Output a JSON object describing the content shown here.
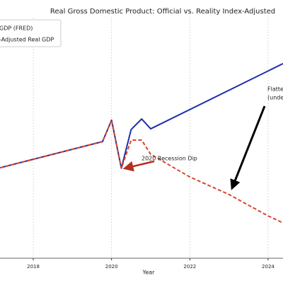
{
  "chart_data": {
    "type": "line",
    "title": "Real Gross Domestic Product: Official vs. Reality Index-Adjusted",
    "xlabel": "Year",
    "xlim": [
      2017.15,
      2024.38
    ],
    "xticks": [
      2018,
      2020,
      2022,
      2024
    ],
    "ylim": [
      0,
      100
    ],
    "grid": true,
    "legend": "upper left",
    "series": [
      {
        "name": "GDP (FRED)",
        "color": "#1f2fa8",
        "style": "solid",
        "x": [
          2017.15,
          2019.77,
          2020.0,
          2020.25,
          2020.5,
          2020.77,
          2021.0,
          2024.38
        ],
        "values": [
          37.6,
          48.5,
          57.4,
          37.4,
          53.5,
          57.9,
          53.8,
          80.9
        ]
      },
      {
        "name": "-Adjusted Real GDP",
        "color": "#d9442a",
        "style": "dashed",
        "x": [
          2017.15,
          2019.77,
          2020.0,
          2020.25,
          2020.5,
          2020.77,
          2021.0,
          2022,
          2023,
          2024,
          2024.38
        ],
        "values": [
          37.6,
          48.5,
          57.4,
          37.4,
          49.1,
          49.1,
          43.2,
          33.8,
          26.5,
          17.6,
          14.7
        ]
      }
    ],
    "annotations": [
      "2020 Recession Dip",
      "Flatte",
      "(unde"
    ]
  }
}
